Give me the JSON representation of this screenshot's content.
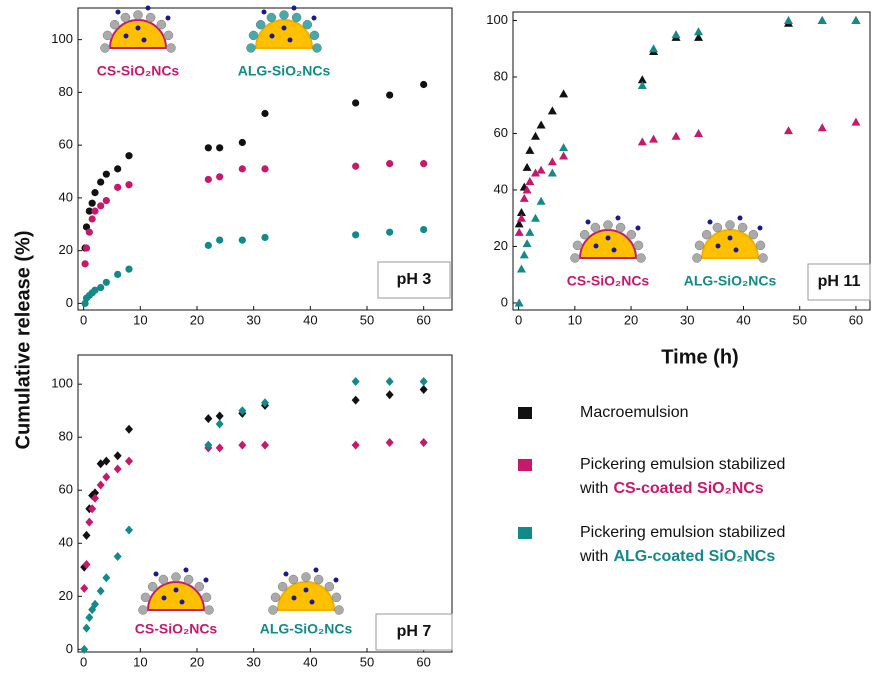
{
  "figure": {
    "ylabel": "Cumulative release (%)",
    "xlabel": "Time (h)",
    "legend": [
      {
        "color": "#111111",
        "text": "Macroemulsion"
      },
      {
        "color": "#c8186c",
        "line1": "Pickering emulsion stabilized",
        "prefix": "with",
        "highlight": "CS-coated SiO₂NCs"
      },
      {
        "color": "#138a8a",
        "line1": "Pickering emulsion stabilized",
        "prefix": "with",
        "highlight": "ALG-coated SiO₂NCs"
      }
    ]
  },
  "chart_data": [
    {
      "type": "scatter",
      "annotation": "pH 3",
      "marker": "circle",
      "labels": [
        "CS-SiO₂NCs",
        "ALG-SiO₂NCs"
      ],
      "x": [
        0.25,
        0.5,
        1,
        1.5,
        2,
        3,
        4,
        6,
        8,
        22,
        24,
        28,
        32,
        48,
        54,
        60
      ],
      "series": [
        {
          "color": "#111111",
          "values": [
            21,
            29,
            35,
            38,
            42,
            46,
            49,
            51,
            56,
            59,
            59,
            61,
            72,
            76,
            79,
            83
          ]
        },
        {
          "color": "#c8186c",
          "values": [
            15,
            21,
            27,
            32,
            35,
            37,
            39,
            44,
            45,
            47,
            48,
            51,
            51,
            52,
            53,
            53
          ]
        },
        {
          "color": "#138a8a",
          "values": [
            0,
            2,
            3,
            4,
            5,
            6,
            8,
            11,
            13,
            22,
            24,
            24,
            25,
            26,
            27,
            28
          ]
        }
      ],
      "xlim": [
        -1,
        65
      ],
      "ylim": [
        -2.5,
        112
      ],
      "xticks": [
        0,
        10,
        20,
        30,
        40,
        50,
        60
      ],
      "yticks": [
        0,
        20,
        40,
        60,
        80,
        100
      ]
    },
    {
      "type": "scatter",
      "annotation": "pH 11",
      "marker": "triangle",
      "labels": [
        "CS-SiO₂NCs",
        "ALG-SiO₂NCs"
      ],
      "x": [
        0.1,
        0.5,
        1,
        1.5,
        2,
        3,
        4,
        6,
        8,
        22,
        24,
        28,
        32,
        48,
        54,
        60
      ],
      "series": [
        {
          "color": "#111111",
          "values": [
            28,
            32,
            41,
            48,
            54,
            59,
            63,
            68,
            74,
            79,
            89,
            94,
            94,
            99,
            100,
            100
          ]
        },
        {
          "color": "#c8186c",
          "values": [
            25,
            30,
            37,
            40,
            43,
            46,
            47,
            50,
            52,
            57,
            58,
            59,
            60,
            61,
            62,
            64
          ]
        },
        {
          "color": "#138a8a",
          "values": [
            0,
            12,
            17,
            21,
            25,
            30,
            36,
            46,
            55,
            77,
            90,
            95,
            96,
            100,
            100,
            100
          ]
        }
      ],
      "xlim": [
        -1,
        62.5
      ],
      "ylim": [
        -2.5,
        103
      ],
      "xticks": [
        0,
        10,
        20,
        30,
        40,
        50,
        60
      ],
      "yticks": [
        0,
        20,
        40,
        60,
        80,
        100
      ]
    },
    {
      "type": "scatter",
      "annotation": "pH 7",
      "marker": "diamond",
      "labels": [
        "CS-SiO₂NCs",
        "ALG-SiO₂NCs"
      ],
      "x": [
        0.1,
        0.5,
        1,
        1.5,
        2,
        3,
        4,
        6,
        8,
        22,
        24,
        28,
        32,
        48,
        54,
        60
      ],
      "series": [
        {
          "color": "#111111",
          "values": [
            31,
            43,
            53,
            58,
            59,
            70,
            71,
            73,
            83,
            87,
            88,
            89,
            92,
            94,
            96,
            98
          ]
        },
        {
          "color": "#c8186c",
          "values": [
            23,
            32,
            48,
            53,
            57,
            62,
            65,
            68,
            71,
            76,
            76,
            77,
            77,
            77,
            78,
            78
          ]
        },
        {
          "color": "#138a8a",
          "values": [
            0,
            8,
            12,
            15,
            17,
            22,
            27,
            35,
            45,
            77,
            85,
            90,
            93,
            101,
            101,
            101
          ]
        }
      ],
      "xlim": [
        -1,
        65
      ],
      "ylim": [
        -1,
        111
      ],
      "xticks": [
        0,
        10,
        20,
        30,
        40,
        50,
        60
      ],
      "yticks": [
        0,
        20,
        40,
        60,
        80,
        100
      ]
    }
  ]
}
